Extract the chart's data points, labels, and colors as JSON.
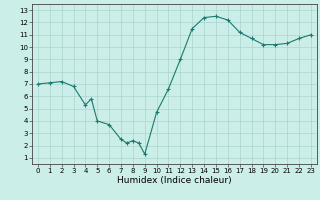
{
  "x": [
    0,
    1,
    2,
    3,
    4,
    4.5,
    5,
    6,
    7,
    7.5,
    8,
    8.5,
    9,
    10,
    11,
    12,
    13,
    14,
    15,
    16,
    17,
    18,
    19,
    20,
    21,
    22,
    23
  ],
  "y": [
    7,
    7.1,
    7.2,
    6.8,
    5.3,
    5.8,
    4.0,
    3.7,
    2.5,
    2.2,
    2.4,
    2.2,
    1.3,
    4.7,
    6.6,
    9.0,
    11.5,
    12.4,
    12.5,
    12.2,
    11.2,
    10.7,
    10.2,
    10.2,
    10.3,
    10.7,
    11.0
  ],
  "xlabel": "Humidex (Indice chaleur)",
  "xlim": [
    -0.5,
    23.5
  ],
  "ylim": [
    0.5,
    13.5
  ],
  "yticks": [
    1,
    2,
    3,
    4,
    5,
    6,
    7,
    8,
    9,
    10,
    11,
    12,
    13
  ],
  "xticks": [
    0,
    1,
    2,
    3,
    4,
    5,
    6,
    7,
    8,
    9,
    10,
    11,
    12,
    13,
    14,
    15,
    16,
    17,
    18,
    19,
    20,
    21,
    22,
    23
  ],
  "line_color": "#1a7a6e",
  "marker": "+",
  "bg_color": "#cceee8",
  "grid_color": "#aad4ce",
  "spine_color": "#444444",
  "tick_label_fontsize": 5.0,
  "xlabel_fontsize": 6.5,
  "linewidth": 0.8,
  "markersize": 3.0,
  "markeredgewidth": 0.8
}
